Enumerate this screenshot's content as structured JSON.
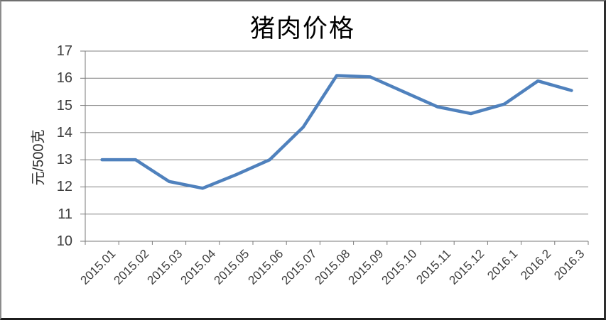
{
  "chart_data": {
    "type": "line",
    "title": "猪肉价格",
    "ylabel": "元/500克",
    "xlabel": "",
    "categories": [
      "2015.01",
      "2015.02",
      "2015.03",
      "2015.04",
      "2015.05",
      "2015.06",
      "2015.07",
      "2015.08",
      "2015.09",
      "2015.10",
      "2015.11",
      "2015.12",
      "2016.1",
      "2016.2",
      "2016.3"
    ],
    "series": [
      {
        "name": "猪肉价格",
        "color": "#4F81BD",
        "values": [
          13.0,
          13.0,
          12.2,
          11.95,
          12.45,
          13.0,
          14.2,
          16.1,
          16.05,
          15.5,
          14.95,
          14.7,
          15.05,
          15.9,
          15.55
        ]
      }
    ],
    "ylim": [
      10,
      17
    ],
    "ytick_step": 1,
    "grid": true,
    "legend": "none",
    "colors": {
      "gridline": "#818181",
      "axis": "#7a7a7a",
      "tick_text": "#3d3d3d",
      "title": "#000000",
      "plot_bg": "#ffffff"
    }
  }
}
